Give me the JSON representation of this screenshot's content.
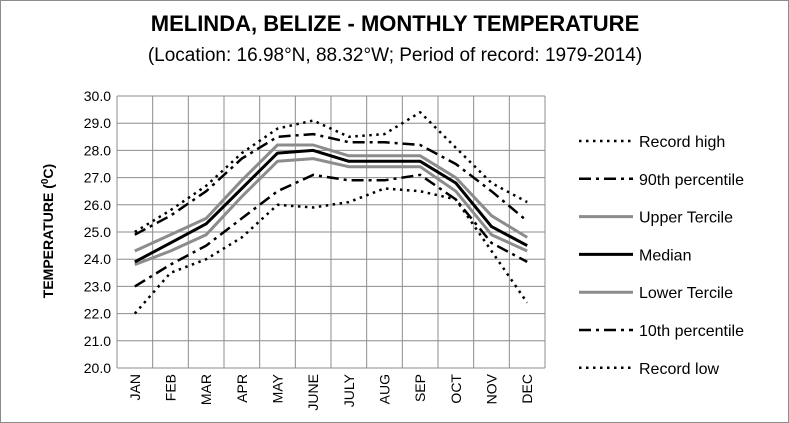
{
  "chart_data": {
    "type": "line",
    "title": "MELINDA, BELIZE - MONTHLY TEMPERATURE",
    "subtitle": "(Location: 16.98°N, 88.32°W; Period of record: 1979-2014)",
    "ylabel_main": "TEMPERATURE (",
    "ylabel_sup": "0",
    "ylabel_end": "C)",
    "categories": [
      "JAN",
      "FEB",
      "MAR",
      "APR",
      "MAY",
      "JUNE",
      "JULY",
      "AUG",
      "SEP",
      "OCT",
      "NOV",
      "DEC"
    ],
    "ylim": [
      20.0,
      30.0
    ],
    "yticks": [
      "20.0",
      "21.0",
      "22.0",
      "23.0",
      "24.0",
      "25.0",
      "26.0",
      "27.0",
      "28.0",
      "29.0",
      "30.0"
    ],
    "grid": true,
    "legend_position": "right",
    "series": [
      {
        "name": "Record high",
        "color": "#000000",
        "style": "dotted",
        "values": [
          25.0,
          25.8,
          26.7,
          27.9,
          28.8,
          29.1,
          28.5,
          28.6,
          29.4,
          28.1,
          26.8,
          26.1
        ]
      },
      {
        "name": "90th percentile",
        "color": "#000000",
        "style": "dashdot",
        "values": [
          24.9,
          25.6,
          26.5,
          27.7,
          28.5,
          28.6,
          28.3,
          28.3,
          28.2,
          27.5,
          26.5,
          25.4
        ]
      },
      {
        "name": "Upper Tercile",
        "color": "#8c8c8c",
        "style": "solid",
        "values": [
          24.3,
          24.9,
          25.5,
          26.9,
          28.2,
          28.2,
          27.8,
          27.8,
          27.8,
          27.0,
          25.6,
          24.8
        ]
      },
      {
        "name": "Median",
        "color": "#000000",
        "style": "solid",
        "values": [
          23.9,
          24.6,
          25.3,
          26.6,
          27.9,
          28.0,
          27.6,
          27.6,
          27.6,
          26.8,
          25.2,
          24.5
        ]
      },
      {
        "name": "Lower Tercile",
        "color": "#8c8c8c",
        "style": "solid",
        "values": [
          23.8,
          24.3,
          24.9,
          26.3,
          27.6,
          27.7,
          27.4,
          27.4,
          27.4,
          26.5,
          24.9,
          24.3
        ]
      },
      {
        "name": "10th percentile",
        "color": "#000000",
        "style": "dashdot",
        "values": [
          23.0,
          23.8,
          24.5,
          25.5,
          26.5,
          27.1,
          26.9,
          26.9,
          27.1,
          26.2,
          24.6,
          23.9
        ]
      },
      {
        "name": "Record low",
        "color": "#000000",
        "style": "dotted",
        "values": [
          22.0,
          23.5,
          24.0,
          24.8,
          26.0,
          25.9,
          26.1,
          26.6,
          26.5,
          26.2,
          24.3,
          22.4
        ]
      }
    ]
  }
}
